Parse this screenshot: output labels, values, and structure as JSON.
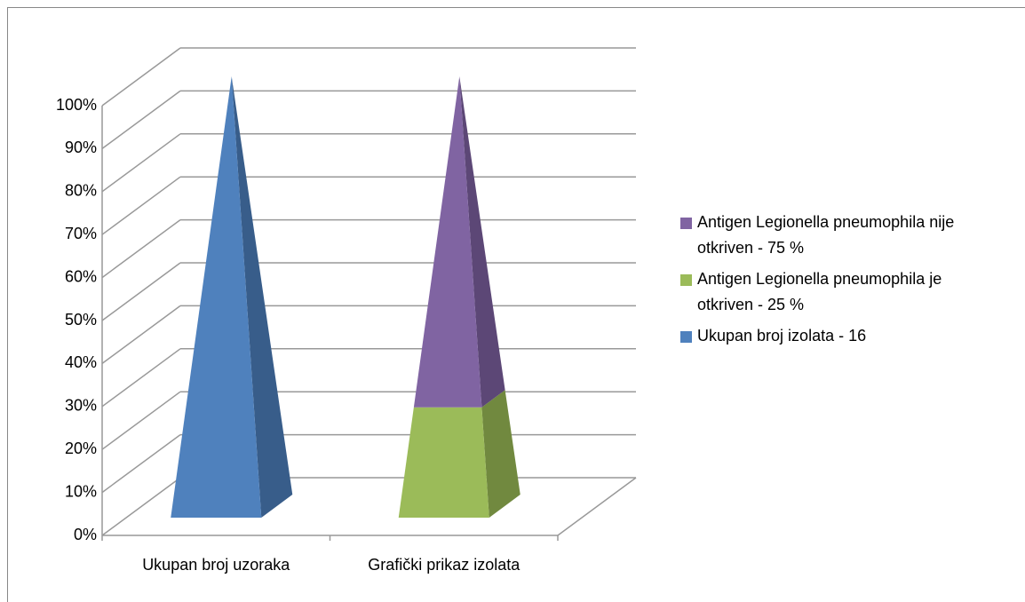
{
  "chart_data": {
    "type": "pyramid3d",
    "categories": [
      "Ukupan broj uzoraka",
      "Grafički prikaz izolata"
    ],
    "series": [
      {
        "name": "Ukupan broj izolata - 16",
        "color": "#4f81bd",
        "side_color": "#385d8a",
        "values": [
          100,
          null
        ]
      },
      {
        "name": "Antigen Legionella pneumophila je otkriven - 25 %",
        "color": "#9bbb59",
        "side_color": "#71893f",
        "values": [
          null,
          25
        ]
      },
      {
        "name": "Antigen Legionella pneumophila nije otkriven - 75 %",
        "color": "#8064a2",
        "side_color": "#5c4776",
        "values": [
          null,
          75
        ]
      }
    ],
    "ylim": [
      0,
      100
    ],
    "yticks": [
      {
        "value": 0,
        "label": "0%"
      },
      {
        "value": 10,
        "label": "10%"
      },
      {
        "value": 20,
        "label": "20%"
      },
      {
        "value": 30,
        "label": "30%"
      },
      {
        "value": 40,
        "label": "40%"
      },
      {
        "value": 50,
        "label": "50%"
      },
      {
        "value": 60,
        "label": "60%"
      },
      {
        "value": 70,
        "label": "70%"
      },
      {
        "value": 80,
        "label": "80%"
      },
      {
        "value": 90,
        "label": "90%"
      },
      {
        "value": 100,
        "label": "100%"
      }
    ],
    "grid": true,
    "legend": "right"
  }
}
